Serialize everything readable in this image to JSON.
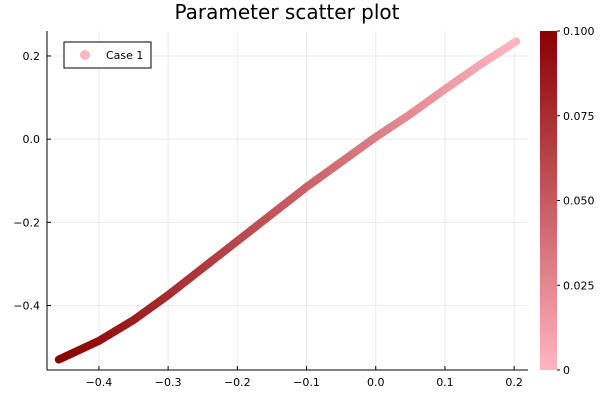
{
  "chart_data": {
    "type": "scatter",
    "title": "Parameter scatter plot",
    "xlabel": "",
    "ylabel": "",
    "xlim": [
      -0.475,
      0.22
    ],
    "ylim": [
      -0.555,
      0.26
    ],
    "x_ticks": [
      -0.4,
      -0.3,
      -0.2,
      -0.1,
      0.0,
      0.1,
      0.2
    ],
    "x_tick_labels": [
      "−0.4",
      "−0.3",
      "−0.2",
      "−0.1",
      "0.0",
      "0.1",
      "0.2"
    ],
    "y_ticks": [
      0.2,
      0.0,
      -0.2,
      -0.4
    ],
    "y_tick_labels": [
      "0.2",
      "0.0",
      "−0.2",
      "−0.4"
    ],
    "grid": true,
    "legend": {
      "position": "top-left",
      "entries": [
        "Case 1"
      ]
    },
    "series": [
      {
        "name": "Case 1",
        "color_start": "#ffb6c1",
        "color_end": "#8b0000",
        "points": [
          {
            "x": -0.458,
            "y": -0.53,
            "c": 0.1
          },
          {
            "x": -0.4,
            "y": -0.485,
            "c": 0.0913
          },
          {
            "x": -0.35,
            "y": -0.435,
            "c": 0.0838
          },
          {
            "x": -0.3,
            "y": -0.375,
            "c": 0.0763
          },
          {
            "x": -0.25,
            "y": -0.31,
            "c": 0.0688
          },
          {
            "x": -0.2,
            "y": -0.245,
            "c": 0.0613
          },
          {
            "x": -0.15,
            "y": -0.18,
            "c": 0.0538
          },
          {
            "x": -0.1,
            "y": -0.115,
            "c": 0.0463
          },
          {
            "x": -0.05,
            "y": -0.055,
            "c": 0.0388
          },
          {
            "x": 0.0,
            "y": 0.005,
            "c": 0.0313
          },
          {
            "x": 0.05,
            "y": 0.06,
            "c": 0.0238
          },
          {
            "x": 0.1,
            "y": 0.12,
            "c": 0.0163
          },
          {
            "x": 0.15,
            "y": 0.178,
            "c": 0.0088
          },
          {
            "x": 0.203,
            "y": 0.235,
            "c": 0.0
          }
        ]
      }
    ],
    "colorbar": {
      "range": [
        0,
        0.1
      ],
      "ticks": [
        0,
        0.025,
        0.05,
        0.075,
        0.1
      ],
      "tick_labels": [
        "0",
        "0.025",
        "0.050",
        "0.075",
        "0.100"
      ],
      "color_low": "#ffb6c1",
      "color_high": "#8b0000"
    }
  }
}
